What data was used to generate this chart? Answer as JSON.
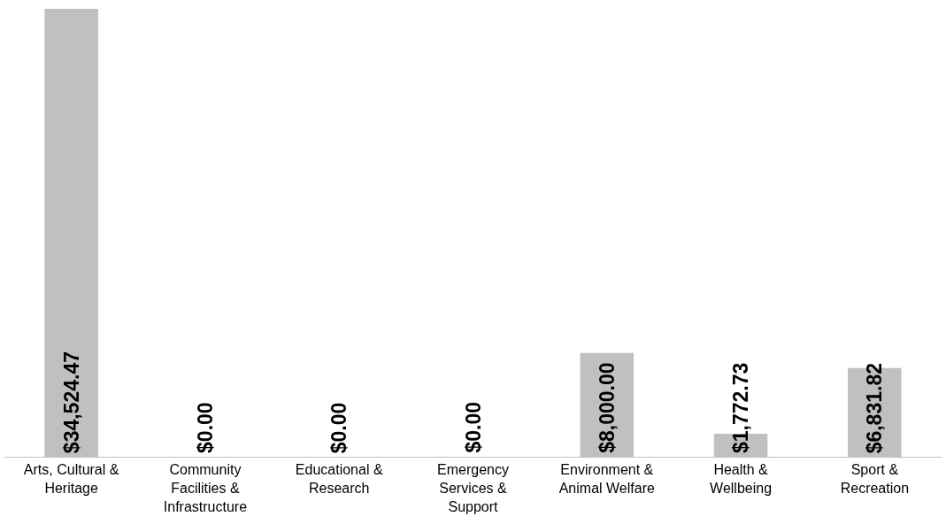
{
  "chart_data": {
    "type": "bar",
    "categories": [
      "Arts, Cultural & Heritage",
      "Community Facilities & Infrastructure",
      "Educational & Research",
      "Emergency Services & Support",
      "Environment & Animal Welfare",
      "Health & Wellbeing",
      "Sport & Recreation"
    ],
    "values": [
      34524.47,
      0,
      0,
      0,
      8000.0,
      1772.73,
      6831.82
    ],
    "value_labels": [
      "$34,524.47",
      "$0.00",
      "$0.00",
      "$0.00",
      "$8,000.00",
      "$1,772.73",
      "$6,831.82"
    ],
    "color": "#c0c0c0"
  }
}
